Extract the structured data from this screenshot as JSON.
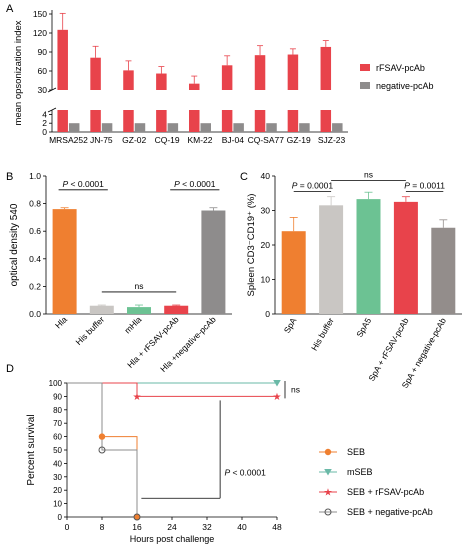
{
  "panel_labels": {
    "a": "A",
    "b": "B",
    "c": "C",
    "d": "D"
  },
  "colors": {
    "red": "#e8434b",
    "gray": "#8e8c8c",
    "orange": "#ef7f30",
    "light_gray": "#c9c6c3",
    "green": "#6cc293",
    "gray2": "#938d8b",
    "teal": "#6ab9a7",
    "axis": "#000000"
  },
  "chart_data": [
    {
      "panel": "A",
      "type": "bar",
      "ylabel": "mean opsonization index",
      "categories": [
        "MRSA252",
        "JN-75",
        "GZ-02",
        "CQ-19",
        "KM-22",
        "BJ-04",
        "CQ-SA77",
        "GZ-19",
        "SJZ-23"
      ],
      "series": [
        {
          "name": "rFSAV-pcAb",
          "values": [
            125,
            81,
            61,
            56,
            40,
            69,
            85,
            86,
            98
          ],
          "errors": [
            26,
            18,
            15,
            11,
            12,
            15,
            15,
            9,
            10
          ]
        },
        {
          "name": "negative-pcAb",
          "values": [
            2,
            2,
            2,
            2,
            2,
            2,
            2,
            2,
            2
          ]
        }
      ],
      "yticks_upper": [
        "30",
        "60",
        "90",
        "120",
        "150"
      ],
      "yticks_lower": [
        "0",
        "2",
        "4"
      ],
      "y_break": [
        5,
        30
      ],
      "ylim_upper": [
        30,
        150
      ],
      "ylim_lower": [
        0,
        5
      ],
      "legend": "right"
    },
    {
      "panel": "B",
      "type": "bar",
      "ylabel": "optical density 540",
      "categories": [
        "Hla",
        "His buffer",
        "mHla",
        "Hla + rFSAV-pcAb",
        "Hla +negative-pcAb"
      ],
      "values": [
        0.76,
        0.06,
        0.05,
        0.06,
        0.75
      ],
      "errors": [
        0.01,
        0.005,
        0.015,
        0.005,
        0.02
      ],
      "ylim": [
        0,
        1
      ],
      "yticks": [
        "0.0",
        "0.2",
        "0.4",
        "0.6",
        "0.8",
        "1.0"
      ],
      "annotations": [
        {
          "text": "P < 0.0001",
          "from": 0,
          "to": 1
        },
        {
          "text": "ns",
          "from": 1,
          "to": 3
        },
        {
          "text": "P < 0.0001",
          "from": 3,
          "to": 4
        }
      ]
    },
    {
      "panel": "C",
      "type": "bar",
      "ylabel": "Spleen CD3⁻CD19⁺ (%)",
      "categories": [
        "SpA",
        "His buffer",
        "SpA5",
        "SpA + rFSAV-pcAb",
        "SpA + negative-pcAb"
      ],
      "values": [
        24,
        31.5,
        33.3,
        32.5,
        25
      ],
      "errors": [
        4,
        2.5,
        2,
        1.5,
        2.3
      ],
      "ylim": [
        0,
        40
      ],
      "yticks": [
        "0",
        "10",
        "20",
        "30",
        "40"
      ],
      "annotations": [
        {
          "text": "P = 0.0001",
          "from": 0,
          "to": 1
        },
        {
          "text": "ns",
          "from": 1,
          "to": 3
        },
        {
          "text": "P = 0.0011",
          "from": 3,
          "to": 4
        }
      ]
    },
    {
      "panel": "D",
      "type": "line",
      "subtype": "survival",
      "ylabel": "Percent survival",
      "xlabel": "Hours post challenge",
      "xlim": [
        0,
        48
      ],
      "ylim": [
        0,
        100
      ],
      "xticks": [
        "0",
        "8",
        "16",
        "24",
        "32",
        "40",
        "48"
      ],
      "yticks": [
        "0",
        "10",
        "20",
        "30",
        "40",
        "50",
        "60",
        "70",
        "80",
        "90",
        "100"
      ],
      "series": [
        {
          "name": "SEB",
          "x": [
            0,
            8,
            16
          ],
          "y": [
            100,
            60,
            0
          ],
          "events": [
            [
              8,
              60
            ],
            [
              16,
              0
            ]
          ]
        },
        {
          "name": "mSEB",
          "x": [
            0,
            48
          ],
          "y": [
            100,
            100
          ],
          "events": [
            [
              48,
              100
            ]
          ]
        },
        {
          "name": "SEB + rFSAV-pcAb",
          "x": [
            0,
            16,
            48
          ],
          "y": [
            100,
            90,
            90
          ],
          "events": [
            [
              16,
              90
            ],
            [
              48,
              90
            ]
          ]
        },
        {
          "name": "SEB + negative-pcAb",
          "x": [
            0,
            8,
            16
          ],
          "y": [
            100,
            50,
            0
          ],
          "events": [
            [
              8,
              50
            ],
            [
              16,
              0
            ]
          ]
        }
      ],
      "annotations": [
        {
          "text": "ns"
        },
        {
          "text": "P < 0.0001"
        }
      ],
      "legend": "right"
    }
  ]
}
